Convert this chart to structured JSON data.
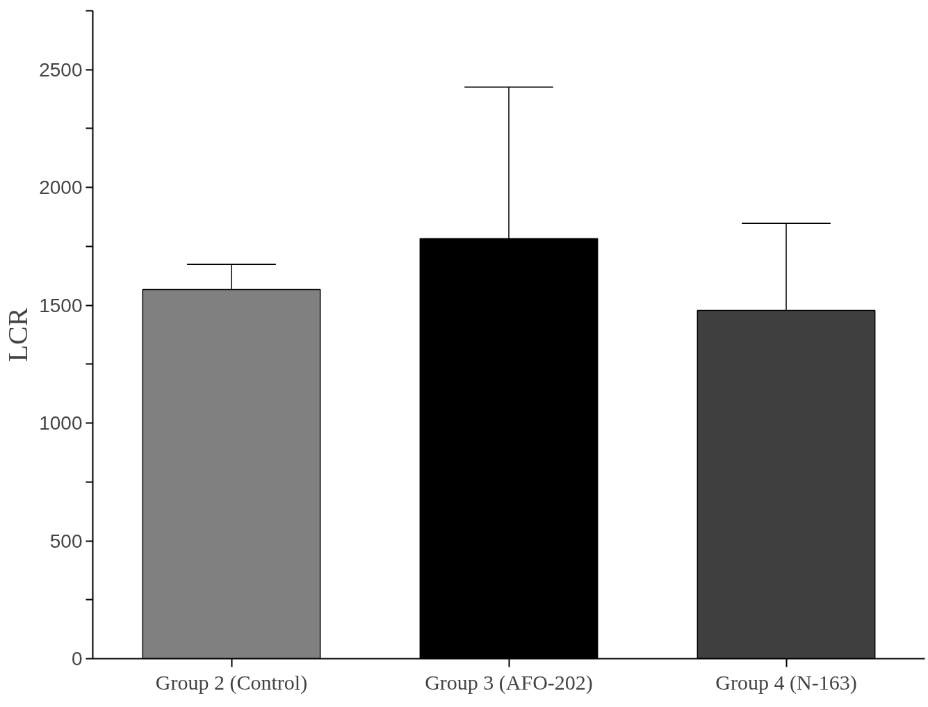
{
  "chart_data": {
    "type": "bar",
    "ylabel": "LCR",
    "categories": [
      "Group 2 (Control)",
      "Group 3 (AFO-202)",
      "Group 4 (N-163)"
    ],
    "values": [
      1567,
      1783,
      1478
    ],
    "colors": [
      "#808080",
      "#000000",
      "#404040"
    ],
    "errors": [
      [
        1567,
        1674
      ],
      [
        1783,
        2426
      ],
      [
        1478,
        1848
      ]
    ],
    "ylim": [
      0,
      2750
    ],
    "yticks": [
      0,
      {
        "value": 250,
        "label": null
      },
      500,
      {
        "value": 750,
        "label": null
      },
      1000,
      {
        "value": 1250,
        "label": null
      },
      1500,
      {
        "value": 1750,
        "label": null
      },
      2000,
      {
        "value": 2250,
        "label": null
      },
      2500,
      {
        "value": 2750,
        "label": null
      }
    ],
    "grid": false
  }
}
